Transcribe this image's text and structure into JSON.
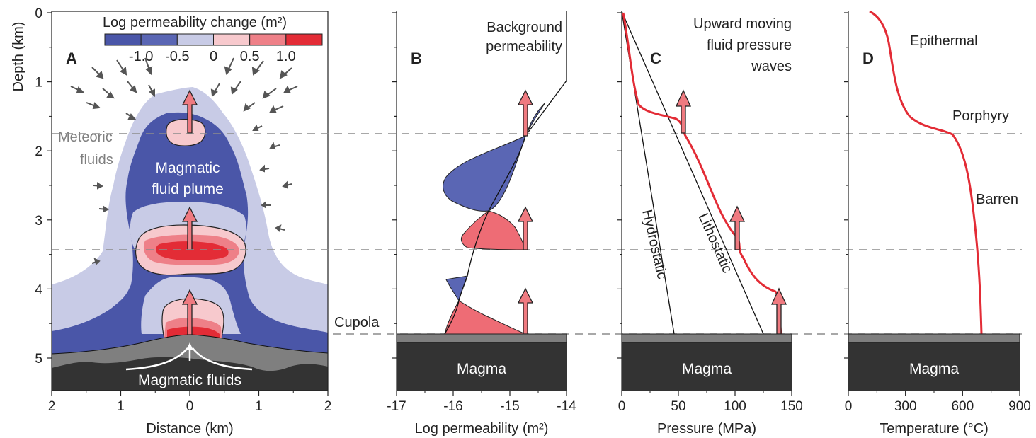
{
  "colors": {
    "blue_dark": "#4a56a8",
    "blue_mid": "#5a66b4",
    "blue_light": "#c8cbe6",
    "pink_light": "#f7c9cd",
    "pink_mid": "#ee8088",
    "red": "#e32c36",
    "grey": "#7f7f7f",
    "magma": "#333333",
    "arrow_fill": "#ef7a80",
    "dash": "#8c8c8c",
    "text": "#222222"
  },
  "depth_axis": {
    "label": "Depth (km)",
    "ticks": [
      "0",
      "1",
      "2",
      "3",
      "4",
      "5"
    ]
  },
  "panelA": {
    "letter": "A",
    "xlabel": "Distance (km)",
    "xticks": [
      "2",
      "1",
      "0",
      "1",
      "2"
    ],
    "colorbar": {
      "title": "Log permeability change (m²)",
      "labels": [
        "-1.0",
        "-0.5",
        "0",
        "0.5",
        "1.0"
      ],
      "colors": [
        "#4a56a8",
        "#5a66b4",
        "#c8cbe6",
        "#f7c9cd",
        "#ee8088",
        "#e32c36"
      ]
    },
    "annotations": {
      "meteoric": "Meteoric",
      "meteoric2": "fluids",
      "plume1": "Magmatic",
      "plume2": "fluid plume",
      "magmatic_fluids": "Magmatic fluids"
    }
  },
  "panelB": {
    "letter": "B",
    "xlabel": "Log permeability (m²)",
    "xticks": [
      "-17",
      "-16",
      "-15",
      "-14"
    ],
    "annotations": {
      "bg1": "Background",
      "bg2": "permeability",
      "cupola": "Cupola",
      "magma": "Magma"
    }
  },
  "panelC": {
    "letter": "C",
    "xlabel": "Pressure (MPa)",
    "xticks": [
      "0",
      "50",
      "100",
      "150"
    ],
    "annotations": {
      "w1": "Upward moving",
      "w2": "fluid pressure",
      "w3": "waves",
      "hydro": "Hydrostatic",
      "litho": "Lithostatic",
      "magma": "Magma"
    }
  },
  "panelD": {
    "letter": "D",
    "xlabel": "Temperature (°C)",
    "xticks": [
      "0",
      "300",
      "600",
      "900"
    ],
    "annotations": {
      "epi": "Epithermal",
      "por": "Porphyry",
      "bar": "Barren",
      "magma": "Magma"
    }
  }
}
